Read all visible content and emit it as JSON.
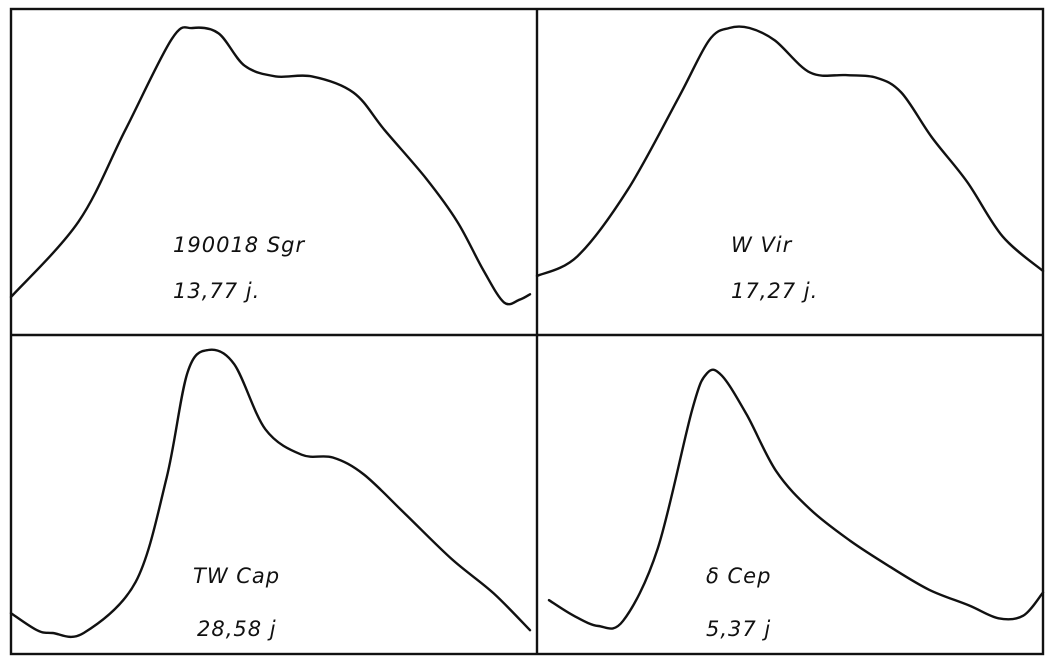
{
  "colors": {
    "ink": "#111111",
    "paper": "#ffffff"
  },
  "chart_data": [
    {
      "type": "line",
      "star": "190018 Sgr",
      "period": "13,77 j.",
      "x": [
        0.0,
        0.13,
        0.22,
        0.31,
        0.35,
        0.4,
        0.45,
        0.51,
        0.58,
        0.66,
        0.72,
        0.8,
        0.86,
        0.91,
        0.95,
        0.98,
        1.0
      ],
      "y": [
        0.0,
        0.28,
        0.62,
        0.96,
        1.0,
        0.98,
        0.86,
        0.82,
        0.82,
        0.76,
        0.62,
        0.44,
        0.28,
        0.1,
        -0.02,
        -0.01,
        0.01
      ]
    },
    {
      "type": "line",
      "star": "W Vir",
      "period": "17,27 j.",
      "x": [
        0.0,
        0.08,
        0.18,
        0.28,
        0.34,
        0.38,
        0.42,
        0.47,
        0.54,
        0.61,
        0.67,
        0.72,
        0.78,
        0.85,
        0.92,
        1.0
      ],
      "y": [
        0.0,
        0.08,
        0.35,
        0.72,
        0.95,
        1.0,
        1.0,
        0.95,
        0.82,
        0.81,
        0.8,
        0.74,
        0.56,
        0.38,
        0.16,
        0.02
      ]
    },
    {
      "type": "line",
      "star": "TW Cap",
      "period": "28,58 j",
      "x": [
        0.0,
        0.05,
        0.08,
        0.14,
        0.24,
        0.3,
        0.34,
        0.38,
        0.43,
        0.49,
        0.56,
        0.62,
        0.68,
        0.76,
        0.85,
        0.93,
        1.0
      ],
      "y": [
        0.07,
        0.01,
        0.0,
        0.0,
        0.18,
        0.55,
        0.92,
        1.0,
        0.95,
        0.72,
        0.63,
        0.62,
        0.56,
        0.42,
        0.26,
        0.14,
        0.01
      ]
    },
    {
      "type": "line",
      "star": "δ Cep",
      "period": "5,37 j",
      "x": [
        0.0,
        0.05,
        0.1,
        0.15,
        0.22,
        0.29,
        0.32,
        0.35,
        0.4,
        0.46,
        0.53,
        0.61,
        0.69,
        0.77,
        0.85,
        0.91,
        0.96,
        1.0
      ],
      "y": [
        0.1,
        0.04,
        0.0,
        0.02,
        0.3,
        0.84,
        0.98,
        0.97,
        0.82,
        0.6,
        0.45,
        0.33,
        0.23,
        0.14,
        0.08,
        0.03,
        0.04,
        0.13
      ]
    }
  ]
}
